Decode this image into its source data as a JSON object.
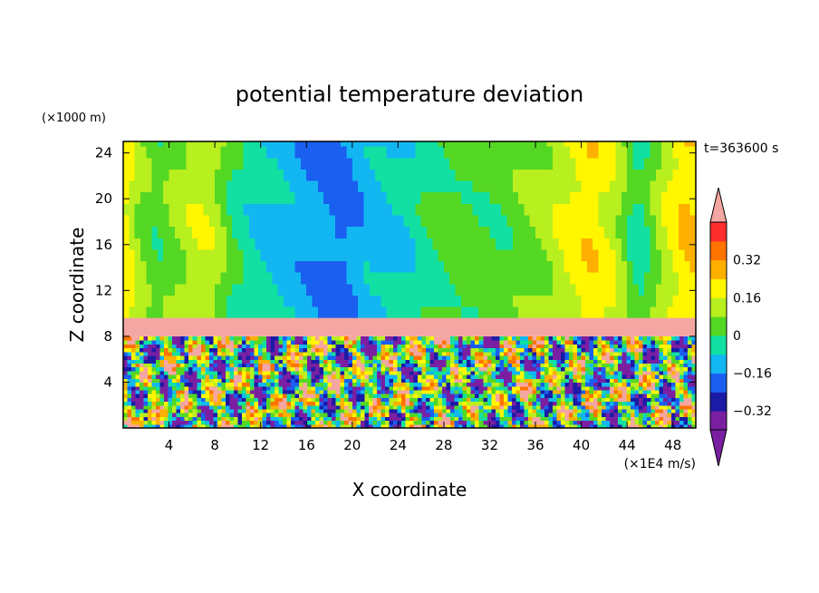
{
  "chart_data": {
    "type": "heatmap",
    "title": "potential temperature deviation",
    "time_label": "t=363600 s",
    "xlabel": "X coordinate",
    "ylabel": "Z coordinate",
    "x_unit": "(×1E4 m/s)",
    "y_unit": "(×1000 m)",
    "xlim": [
      0,
      50
    ],
    "ylim": [
      0,
      25
    ],
    "x_ticks": [
      4,
      8,
      12,
      16,
      20,
      24,
      28,
      32,
      36,
      40,
      44,
      48
    ],
    "y_ticks": [
      4,
      8,
      12,
      16,
      20,
      24
    ],
    "colorbar": {
      "levels": [
        -0.4,
        -0.32,
        -0.24,
        -0.16,
        -0.08,
        0,
        0.08,
        0.16,
        0.24,
        0.32,
        0.4
      ],
      "colors": [
        "#7a1fa2",
        "#1b1ba6",
        "#1a5ff0",
        "#12b7f2",
        "#11e0a2",
        "#54d823",
        "#b8ef1e",
        "#fff600",
        "#fdb000",
        "#ff7300",
        "#ff2e2e"
      ],
      "under_color": "#7a1fa2",
      "over_color": "#f4a6a2",
      "tick_labels": [
        "0.32",
        "0.16",
        "0",
        "−0.16",
        "−0.32"
      ]
    },
    "upper_columns": {
      "x": [
        0,
        1.5,
        3,
        5,
        6.5,
        8,
        9.5,
        11,
        13,
        15,
        17,
        19,
        21,
        23,
        25,
        27,
        29,
        31,
        33,
        35,
        37,
        39,
        41,
        43,
        45,
        47,
        49
      ],
      "value": [
        0.22,
        0.08,
        0.02,
        0.1,
        0.15,
        0.12,
        0.0,
        -0.05,
        -0.1,
        -0.12,
        -0.15,
        -0.2,
        -0.12,
        -0.1,
        -0.06,
        0.0,
        0.04,
        0.03,
        0.02,
        0.06,
        0.1,
        0.18,
        0.22,
        0.14,
        -0.05,
        0.12,
        0.24
      ]
    },
    "inversion_layer": {
      "z_range": [
        8,
        9.6
      ],
      "value": 0.45
    }
  }
}
